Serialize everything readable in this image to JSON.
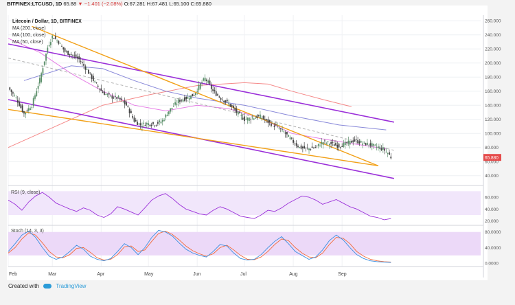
{
  "header": {
    "symbol": "BITFINEX:LTCUSD, 1D",
    "change_arrow": "▼",
    "change": "−1.401 (−2.08%)",
    "ohlc": "O:67.281 H:67.481 L:65.100 C:65.880",
    "o_value": 65.88
  },
  "legend": {
    "title": "Litecoin / Dollar, 1D, BITFINEX",
    "ma200": "MA (200, close)",
    "ma100": "MA (100, close)",
    "ma50": "MA (50, close)"
  },
  "panes": {
    "rsi_label": "RSI (9, close)",
    "stoch_label": "Stoch (14, 3, 3)"
  },
  "footer": {
    "created_with": "Created with",
    "brand": "TradingView"
  },
  "colors": {
    "up": "#5b8f6a",
    "down": "#444444",
    "channel": "#9b30d9",
    "wedge": "#f2a017",
    "ma200": "#f26b6b",
    "ma100": "#6a6ad0",
    "ma50": "#e05ce0",
    "rsi": "#9b30d9",
    "stoch_k": "#3b8fe0",
    "stoch_d": "#f26b3a",
    "price_tag": "#e54b4b"
  },
  "chart_data": {
    "type": "line",
    "instrument": "LTCUSD daily",
    "price_axis": {
      "ticks": [
        260,
        240,
        220,
        200,
        180,
        160,
        140,
        120,
        100,
        80,
        60,
        40
      ],
      "ylim": [
        28,
        268
      ]
    },
    "last_price": "65.880",
    "time_axis": {
      "labels": [
        "Feb",
        "Mar",
        "Apr",
        "May",
        "Jun",
        "Jul",
        "Aug",
        "Sep"
      ]
    },
    "close_path": [
      [
        0,
        165
      ],
      [
        5,
        150
      ],
      [
        10,
        128
      ],
      [
        15,
        140
      ],
      [
        20,
        176
      ],
      [
        25,
        222
      ],
      [
        28,
        238
      ],
      [
        32,
        230
      ],
      [
        36,
        216
      ],
      [
        40,
        212
      ],
      [
        45,
        205
      ],
      [
        50,
        190
      ],
      [
        55,
        172
      ],
      [
        60,
        158
      ],
      [
        65,
        152
      ],
      [
        70,
        150
      ],
      [
        75,
        140
      ],
      [
        80,
        118
      ],
      [
        84,
        112
      ],
      [
        88,
        114
      ],
      [
        93,
        113
      ],
      [
        98,
        118
      ],
      [
        102,
        132
      ],
      [
        108,
        146
      ],
      [
        113,
        150
      ],
      [
        118,
        155
      ],
      [
        122,
        170
      ],
      [
        125,
        178
      ],
      [
        127,
        172
      ],
      [
        130,
        160
      ],
      [
        135,
        150
      ],
      [
        140,
        142
      ],
      [
        145,
        130
      ],
      [
        150,
        120
      ],
      [
        155,
        122
      ],
      [
        160,
        124
      ],
      [
        165,
        116
      ],
      [
        170,
        110
      ],
      [
        175,
        102
      ],
      [
        180,
        90
      ],
      [
        185,
        80
      ],
      [
        190,
        78
      ],
      [
        195,
        80
      ],
      [
        200,
        88
      ],
      [
        205,
        85
      ],
      [
        210,
        82
      ],
      [
        215,
        86
      ],
      [
        220,
        90
      ],
      [
        225,
        86
      ],
      [
        230,
        84
      ],
      [
        235,
        80
      ],
      [
        238,
        78
      ],
      [
        241,
        72
      ],
      [
        243,
        66
      ]
    ],
    "moving_averages": {
      "ma200": [
        [
          0,
          80
        ],
        [
          30,
          110
        ],
        [
          60,
          140
        ],
        [
          90,
          155
        ],
        [
          120,
          168
        ],
        [
          150,
          172
        ],
        [
          165,
          170
        ],
        [
          180,
          160
        ],
        [
          200,
          148
        ],
        [
          218,
          138
        ]
      ],
      "ma100": [
        [
          10,
          175
        ],
        [
          40,
          196
        ],
        [
          60,
          192
        ],
        [
          80,
          175
        ],
        [
          100,
          160
        ],
        [
          120,
          150
        ],
        [
          150,
          140
        ],
        [
          180,
          125
        ],
        [
          210,
          112
        ],
        [
          240,
          105
        ]
      ],
      "ma50": [
        [
          0,
          235
        ],
        [
          20,
          215
        ],
        [
          40,
          185
        ],
        [
          60,
          160
        ],
        [
          80,
          140
        ],
        [
          100,
          132
        ],
        [
          120,
          140
        ],
        [
          140,
          135
        ],
        [
          160,
          122
        ],
        [
          180,
          100
        ],
        [
          200,
          92
        ],
        [
          220,
          85
        ],
        [
          240,
          78
        ]
      ]
    },
    "trendlines": {
      "channel_upper": [
        [
          0,
          227
        ],
        [
          245,
          116
        ]
      ],
      "channel_lower": [
        [
          0,
          148
        ],
        [
          245,
          36
        ]
      ],
      "wedge_upper": [
        [
          15,
          252
        ],
        [
          235,
          54
        ]
      ],
      "wedge_lower": [
        [
          0,
          134
        ],
        [
          235,
          54
        ]
      ],
      "dashed_mid": [
        [
          0,
          207
        ],
        [
          245,
          76
        ]
      ]
    },
    "rsi": {
      "label": "RSI (9, close)",
      "ticks": [
        60,
        40,
        20
      ],
      "ylim": [
        15,
        75
      ],
      "values": [
        55,
        48,
        38,
        52,
        62,
        68,
        60,
        50,
        45,
        40,
        36,
        42,
        38,
        30,
        26,
        32,
        44,
        40,
        35,
        30,
        42,
        55,
        62,
        66,
        58,
        48,
        40,
        36,
        32,
        30,
        38,
        44,
        40,
        34,
        28,
        26,
        24,
        30,
        38,
        36,
        42,
        50,
        56,
        62,
        60,
        55,
        48,
        52,
        56,
        50,
        44,
        40,
        34,
        28,
        26,
        22,
        24
      ]
    },
    "stoch": {
      "label": "Stoch (14, 3, 3)",
      "ticks": [
        80,
        40,
        0
      ],
      "ylim": [
        -5,
        90
      ],
      "k": [
        30,
        50,
        72,
        82,
        66,
        40,
        18,
        10,
        16,
        30,
        46,
        36,
        18,
        10,
        6,
        12,
        30,
        50,
        40,
        22,
        40,
        66,
        84,
        80,
        70,
        52,
        36,
        26,
        20,
        16,
        30,
        48,
        44,
        26,
        12,
        8,
        10,
        22,
        40,
        56,
        68,
        50,
        30,
        20,
        10,
        16,
        34,
        58,
        72,
        60,
        40,
        22,
        12,
        6,
        4,
        3,
        2
      ],
      "d": [
        26,
        40,
        62,
        78,
        72,
        52,
        30,
        16,
        14,
        22,
        38,
        40,
        28,
        14,
        8,
        10,
        22,
        42,
        44,
        30,
        34,
        56,
        76,
        82,
        74,
        60,
        44,
        32,
        24,
        18,
        24,
        40,
        46,
        34,
        20,
        10,
        9,
        16,
        30,
        48,
        62,
        58,
        40,
        26,
        16,
        14,
        26,
        48,
        66,
        64,
        50,
        30,
        18,
        10,
        6,
        4,
        3
      ]
    }
  }
}
